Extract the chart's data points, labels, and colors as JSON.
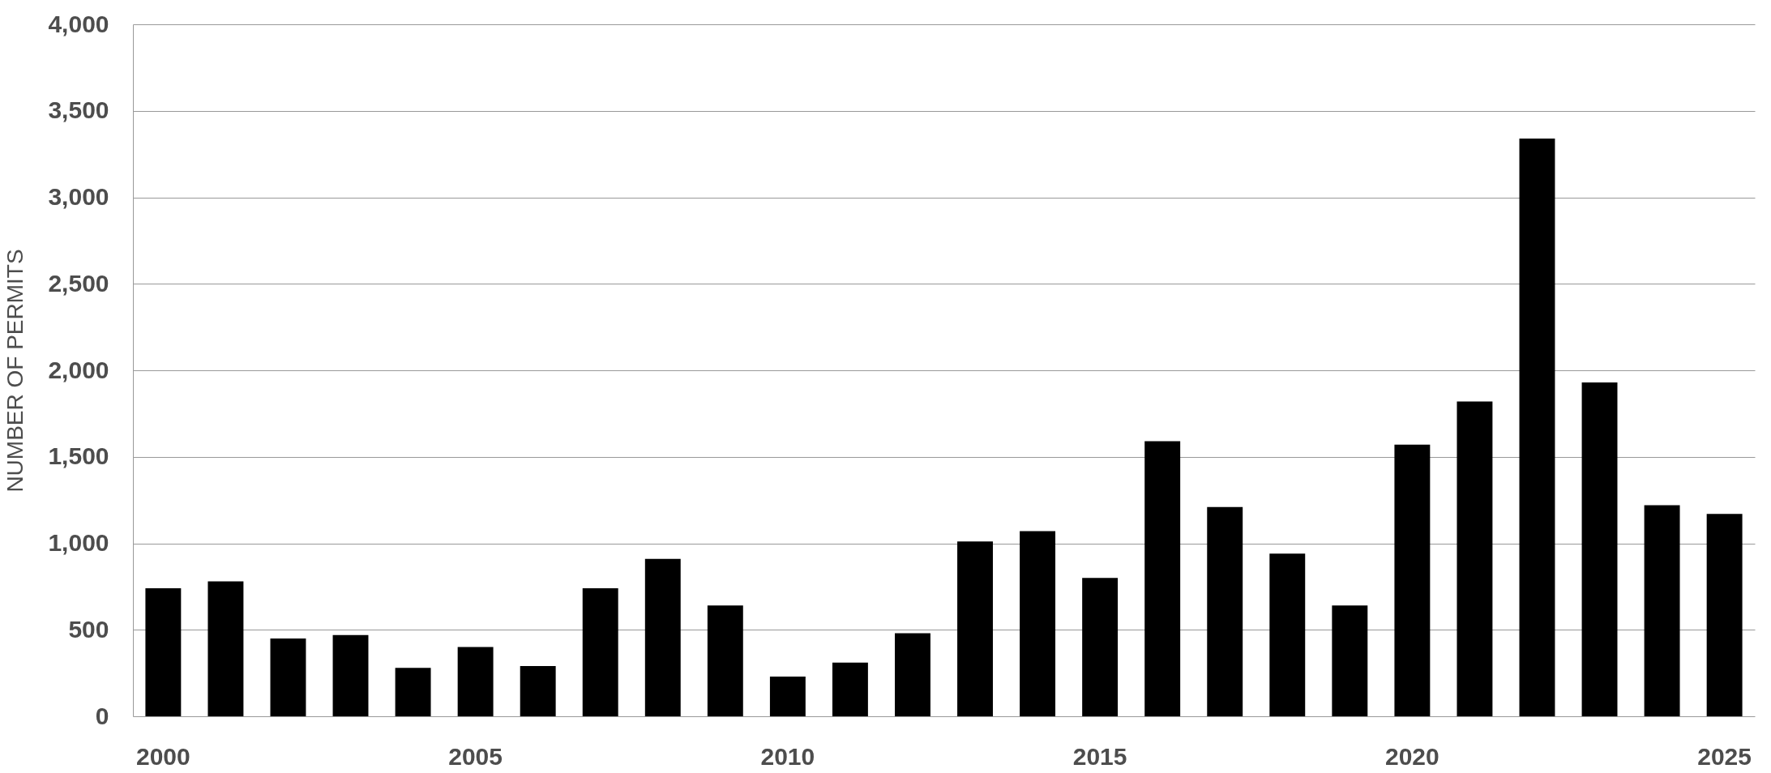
{
  "chart_data": {
    "type": "bar",
    "ylabel": "NUMBER OF PERMITS",
    "categories": [
      "2000",
      null,
      null,
      null,
      null,
      "2005",
      null,
      null,
      null,
      null,
      "2010",
      null,
      null,
      null,
      null,
      "2015",
      null,
      null,
      null,
      null,
      "2020",
      null,
      null,
      null,
      null,
      "2025"
    ],
    "values": [
      740,
      780,
      450,
      470,
      280,
      400,
      290,
      740,
      910,
      640,
      230,
      310,
      480,
      1010,
      1070,
      800,
      1590,
      1210,
      940,
      640,
      1570,
      1820,
      3340,
      1930,
      1220,
      1170
    ],
    "color": "#000000",
    "ylim": [
      0,
      4000
    ],
    "yticks": [
      0,
      500,
      {
        "value": 1000,
        "label": "1,000"
      },
      {
        "value": 1500,
        "label": "1,500"
      },
      {
        "value": 2000,
        "label": "2,000"
      },
      {
        "value": 2500,
        "label": "2,500"
      },
      {
        "value": 3000,
        "label": "3,000"
      },
      {
        "value": 3500,
        "label": "3,500"
      },
      {
        "value": 4000,
        "label": "4,000"
      }
    ],
    "grid": "y"
  }
}
